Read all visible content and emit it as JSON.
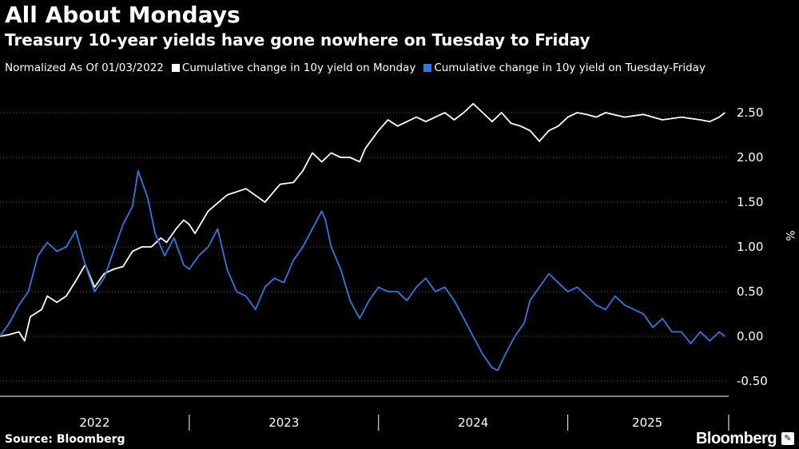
{
  "header": {
    "title": "All About Mondays",
    "subtitle": "Treasury 10-year yields have gone nowhere on Tuesday to Friday"
  },
  "legend": {
    "note": "Normalized As Of 01/03/2022",
    "items": [
      {
        "label": "Cumulative change in 10y yield on Monday",
        "color": "#ffffff"
      },
      {
        "label": "Cumulative change in 10y yield on Tuesday-Friday",
        "color": "#2e7be0"
      }
    ]
  },
  "footer": {
    "source": "Source: Bloomberg",
    "brand": "Bloomberg",
    "brand_icon": "bloomberg-logo-icon"
  },
  "chart_data": {
    "type": "line",
    "title": "All About Mondays",
    "xlabel": "",
    "ylabel": "%",
    "ylim": [
      -0.6,
      2.8
    ],
    "xlim": [
      2022.0,
      2025.85
    ],
    "yticks": [
      2.5,
      2.0,
      1.5,
      1.0,
      0.5,
      0.0,
      -0.5
    ],
    "ytick_labels": [
      "2.50",
      "2.00",
      "1.50",
      "1.00",
      "0.50",
      "0.00",
      "-0.50"
    ],
    "xticks": [
      {
        "label": "2022",
        "center": 2022.5
      },
      {
        "label": "2023",
        "center": 2023.5
      },
      {
        "label": "2024",
        "center": 2024.5
      },
      {
        "label": "2025",
        "center": 2025.42
      }
    ],
    "year_dividers": [
      2023.0,
      2024.0,
      2025.0,
      2025.85
    ],
    "grid": true,
    "legend": "top-left",
    "series": [
      {
        "name": "Cumulative change in 10y yield on Monday",
        "color": "#ffffff",
        "points": [
          [
            2022.0,
            0.0
          ],
          [
            2022.05,
            0.02
          ],
          [
            2022.1,
            0.05
          ],
          [
            2022.13,
            -0.05
          ],
          [
            2022.16,
            0.22
          ],
          [
            2022.22,
            0.3
          ],
          [
            2022.25,
            0.45
          ],
          [
            2022.3,
            0.38
          ],
          [
            2022.35,
            0.45
          ],
          [
            2022.4,
            0.62
          ],
          [
            2022.45,
            0.8
          ],
          [
            2022.5,
            0.55
          ],
          [
            2022.55,
            0.7
          ],
          [
            2022.6,
            0.75
          ],
          [
            2022.65,
            0.78
          ],
          [
            2022.7,
            0.95
          ],
          [
            2022.75,
            1.0
          ],
          [
            2022.8,
            1.0
          ],
          [
            2022.85,
            1.1
          ],
          [
            2022.88,
            1.05
          ],
          [
            2022.93,
            1.2
          ],
          [
            2022.97,
            1.3
          ],
          [
            2023.0,
            1.25
          ],
          [
            2023.03,
            1.15
          ],
          [
            2023.1,
            1.4
          ],
          [
            2023.2,
            1.58
          ],
          [
            2023.3,
            1.65
          ],
          [
            2023.4,
            1.5
          ],
          [
            2023.48,
            1.7
          ],
          [
            2023.55,
            1.72
          ],
          [
            2023.6,
            1.85
          ],
          [
            2023.65,
            2.05
          ],
          [
            2023.7,
            1.95
          ],
          [
            2023.75,
            2.05
          ],
          [
            2023.8,
            2.0
          ],
          [
            2023.85,
            2.0
          ],
          [
            2023.9,
            1.95
          ],
          [
            2023.93,
            2.1
          ],
          [
            2024.0,
            2.3
          ],
          [
            2024.05,
            2.42
          ],
          [
            2024.1,
            2.35
          ],
          [
            2024.15,
            2.4
          ],
          [
            2024.2,
            2.45
          ],
          [
            2024.25,
            2.4
          ],
          [
            2024.3,
            2.45
          ],
          [
            2024.35,
            2.5
          ],
          [
            2024.4,
            2.42
          ],
          [
            2024.45,
            2.5
          ],
          [
            2024.5,
            2.6
          ],
          [
            2024.55,
            2.5
          ],
          [
            2024.6,
            2.4
          ],
          [
            2024.65,
            2.5
          ],
          [
            2024.7,
            2.38
          ],
          [
            2024.75,
            2.35
          ],
          [
            2024.8,
            2.3
          ],
          [
            2024.85,
            2.18
          ],
          [
            2024.9,
            2.3
          ],
          [
            2024.95,
            2.35
          ],
          [
            2025.0,
            2.45
          ],
          [
            2025.05,
            2.5
          ],
          [
            2025.1,
            2.48
          ],
          [
            2025.15,
            2.45
          ],
          [
            2025.2,
            2.5
          ],
          [
            2025.3,
            2.45
          ],
          [
            2025.4,
            2.48
          ],
          [
            2025.5,
            2.42
          ],
          [
            2025.6,
            2.45
          ],
          [
            2025.7,
            2.42
          ],
          [
            2025.75,
            2.4
          ],
          [
            2025.8,
            2.45
          ],
          [
            2025.83,
            2.5
          ]
        ]
      },
      {
        "name": "Cumulative change in 10y yield on Tuesday-Friday",
        "color": "#2e7be0",
        "points": [
          [
            2022.0,
            0.0
          ],
          [
            2022.05,
            0.15
          ],
          [
            2022.1,
            0.35
          ],
          [
            2022.15,
            0.5
          ],
          [
            2022.2,
            0.9
          ],
          [
            2022.25,
            1.05
          ],
          [
            2022.3,
            0.95
          ],
          [
            2022.35,
            1.0
          ],
          [
            2022.4,
            1.18
          ],
          [
            2022.45,
            0.8
          ],
          [
            2022.5,
            0.5
          ],
          [
            2022.55,
            0.65
          ],
          [
            2022.6,
            0.95
          ],
          [
            2022.65,
            1.25
          ],
          [
            2022.7,
            1.45
          ],
          [
            2022.73,
            1.85
          ],
          [
            2022.78,
            1.55
          ],
          [
            2022.82,
            1.15
          ],
          [
            2022.87,
            0.9
          ],
          [
            2022.92,
            1.1
          ],
          [
            2022.97,
            0.8
          ],
          [
            2023.0,
            0.75
          ],
          [
            2023.05,
            0.9
          ],
          [
            2023.1,
            1.0
          ],
          [
            2023.15,
            1.2
          ],
          [
            2023.2,
            0.75
          ],
          [
            2023.25,
            0.5
          ],
          [
            2023.3,
            0.45
          ],
          [
            2023.35,
            0.3
          ],
          [
            2023.4,
            0.55
          ],
          [
            2023.45,
            0.65
          ],
          [
            2023.5,
            0.6
          ],
          [
            2023.55,
            0.85
          ],
          [
            2023.6,
            1.0
          ],
          [
            2023.65,
            1.2
          ],
          [
            2023.7,
            1.4
          ],
          [
            2023.72,
            1.3
          ],
          [
            2023.75,
            1.0
          ],
          [
            2023.8,
            0.75
          ],
          [
            2023.85,
            0.4
          ],
          [
            2023.9,
            0.2
          ],
          [
            2023.95,
            0.4
          ],
          [
            2024.0,
            0.55
          ],
          [
            2024.05,
            0.5
          ],
          [
            2024.1,
            0.5
          ],
          [
            2024.15,
            0.4
          ],
          [
            2024.2,
            0.55
          ],
          [
            2024.25,
            0.65
          ],
          [
            2024.3,
            0.5
          ],
          [
            2024.35,
            0.55
          ],
          [
            2024.4,
            0.4
          ],
          [
            2024.45,
            0.2
          ],
          [
            2024.5,
            0.0
          ],
          [
            2024.55,
            -0.2
          ],
          [
            2024.6,
            -0.35
          ],
          [
            2024.63,
            -0.38
          ],
          [
            2024.67,
            -0.2
          ],
          [
            2024.72,
            0.0
          ],
          [
            2024.77,
            0.15
          ],
          [
            2024.8,
            0.4
          ],
          [
            2024.85,
            0.55
          ],
          [
            2024.9,
            0.7
          ],
          [
            2024.95,
            0.6
          ],
          [
            2025.0,
            0.5
          ],
          [
            2025.05,
            0.55
          ],
          [
            2025.1,
            0.45
          ],
          [
            2025.15,
            0.35
          ],
          [
            2025.2,
            0.3
          ],
          [
            2025.25,
            0.45
          ],
          [
            2025.3,
            0.35
          ],
          [
            2025.35,
            0.3
          ],
          [
            2025.4,
            0.25
          ],
          [
            2025.45,
            0.1
          ],
          [
            2025.5,
            0.2
          ],
          [
            2025.55,
            0.05
          ],
          [
            2025.6,
            0.05
          ],
          [
            2025.65,
            -0.08
          ],
          [
            2025.7,
            0.05
          ],
          [
            2025.75,
            -0.05
          ],
          [
            2025.8,
            0.05
          ],
          [
            2025.83,
            0.0
          ]
        ]
      }
    ]
  }
}
